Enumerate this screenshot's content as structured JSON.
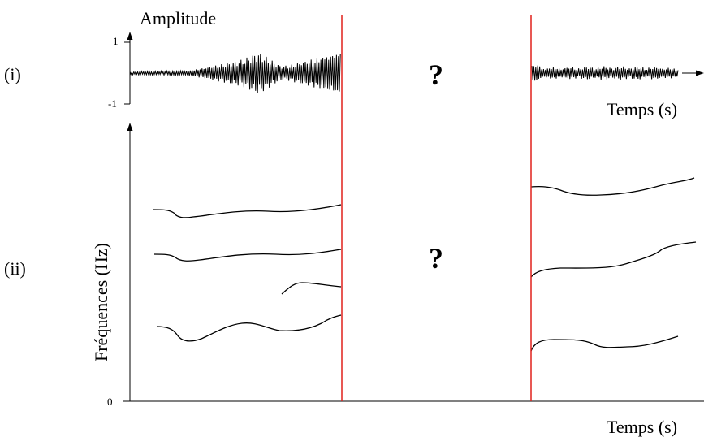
{
  "labels": {
    "panel_i": "(i)",
    "panel_ii": "(ii)",
    "amplitude_axis": "Amplitude",
    "amp_tick_top": "1",
    "amp_tick_bottom": "-1",
    "time_axis_top": "Temps (s)",
    "frequency_axis": "Fréquences (Hz)",
    "freq_tick_zero": "0",
    "time_axis_bottom": "Temps (s)",
    "gap_mark_top": "?",
    "gap_mark_bottom": "?"
  },
  "colors": {
    "gap_border": "#e0201c",
    "ink": "#000000"
  }
}
